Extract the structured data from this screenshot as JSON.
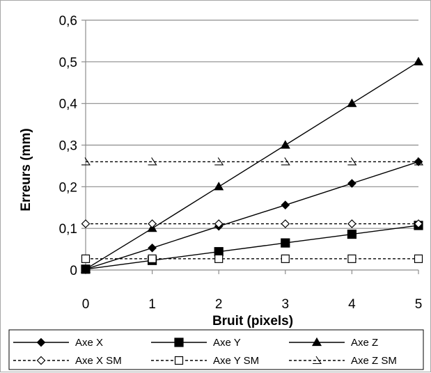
{
  "chart_data": {
    "type": "line",
    "title": "",
    "xlabel": "Bruit (pixels)",
    "ylabel": "Erreurs (mm)",
    "x": [
      0,
      1,
      2,
      3,
      4,
      5
    ],
    "x_tick_labels": [
      "0",
      "1",
      "2",
      "3",
      "4",
      "5"
    ],
    "xlim": [
      0,
      5
    ],
    "y_tick_values": [
      0,
      0.1,
      0.2,
      0.3,
      0.4,
      0.5,
      0.6
    ],
    "y_tick_labels": [
      "0",
      "0,1",
      "0,2",
      "0,3",
      "0,4",
      "0,5",
      "0,6"
    ],
    "ylim": [
      0,
      0.6
    ],
    "grid": "horizontal",
    "legend_position": "bottom",
    "series": [
      {
        "name": "Axe X",
        "values": [
          0.002,
          0.053,
          0.105,
          0.156,
          0.208,
          0.26
        ],
        "color": "#000000",
        "line": "solid",
        "marker": "diamond-filled"
      },
      {
        "name": "Axe Y",
        "values": [
          0.002,
          0.023,
          0.044,
          0.065,
          0.086,
          0.107
        ],
        "color": "#000000",
        "line": "solid",
        "marker": "square-filled"
      },
      {
        "name": "Axe Z",
        "values": [
          0.002,
          0.1,
          0.2,
          0.3,
          0.4,
          0.5
        ],
        "color": "#000000",
        "line": "solid",
        "marker": "triangle-filled"
      },
      {
        "name": "Axe X SM",
        "values": [
          0.111,
          0.111,
          0.111,
          0.111,
          0.111,
          0.111
        ],
        "color": "#000000",
        "line": "dashed",
        "marker": "diamond-open"
      },
      {
        "name": "Axe Y SM",
        "values": [
          0.027,
          0.027,
          0.027,
          0.027,
          0.027,
          0.027
        ],
        "color": "#000000",
        "line": "dashed",
        "marker": "square-open"
      },
      {
        "name": "Axe Z SM",
        "values": [
          0.26,
          0.26,
          0.26,
          0.26,
          0.26,
          0.26
        ],
        "color": "#000000",
        "line": "dashed",
        "marker": "triangle-open"
      }
    ]
  }
}
